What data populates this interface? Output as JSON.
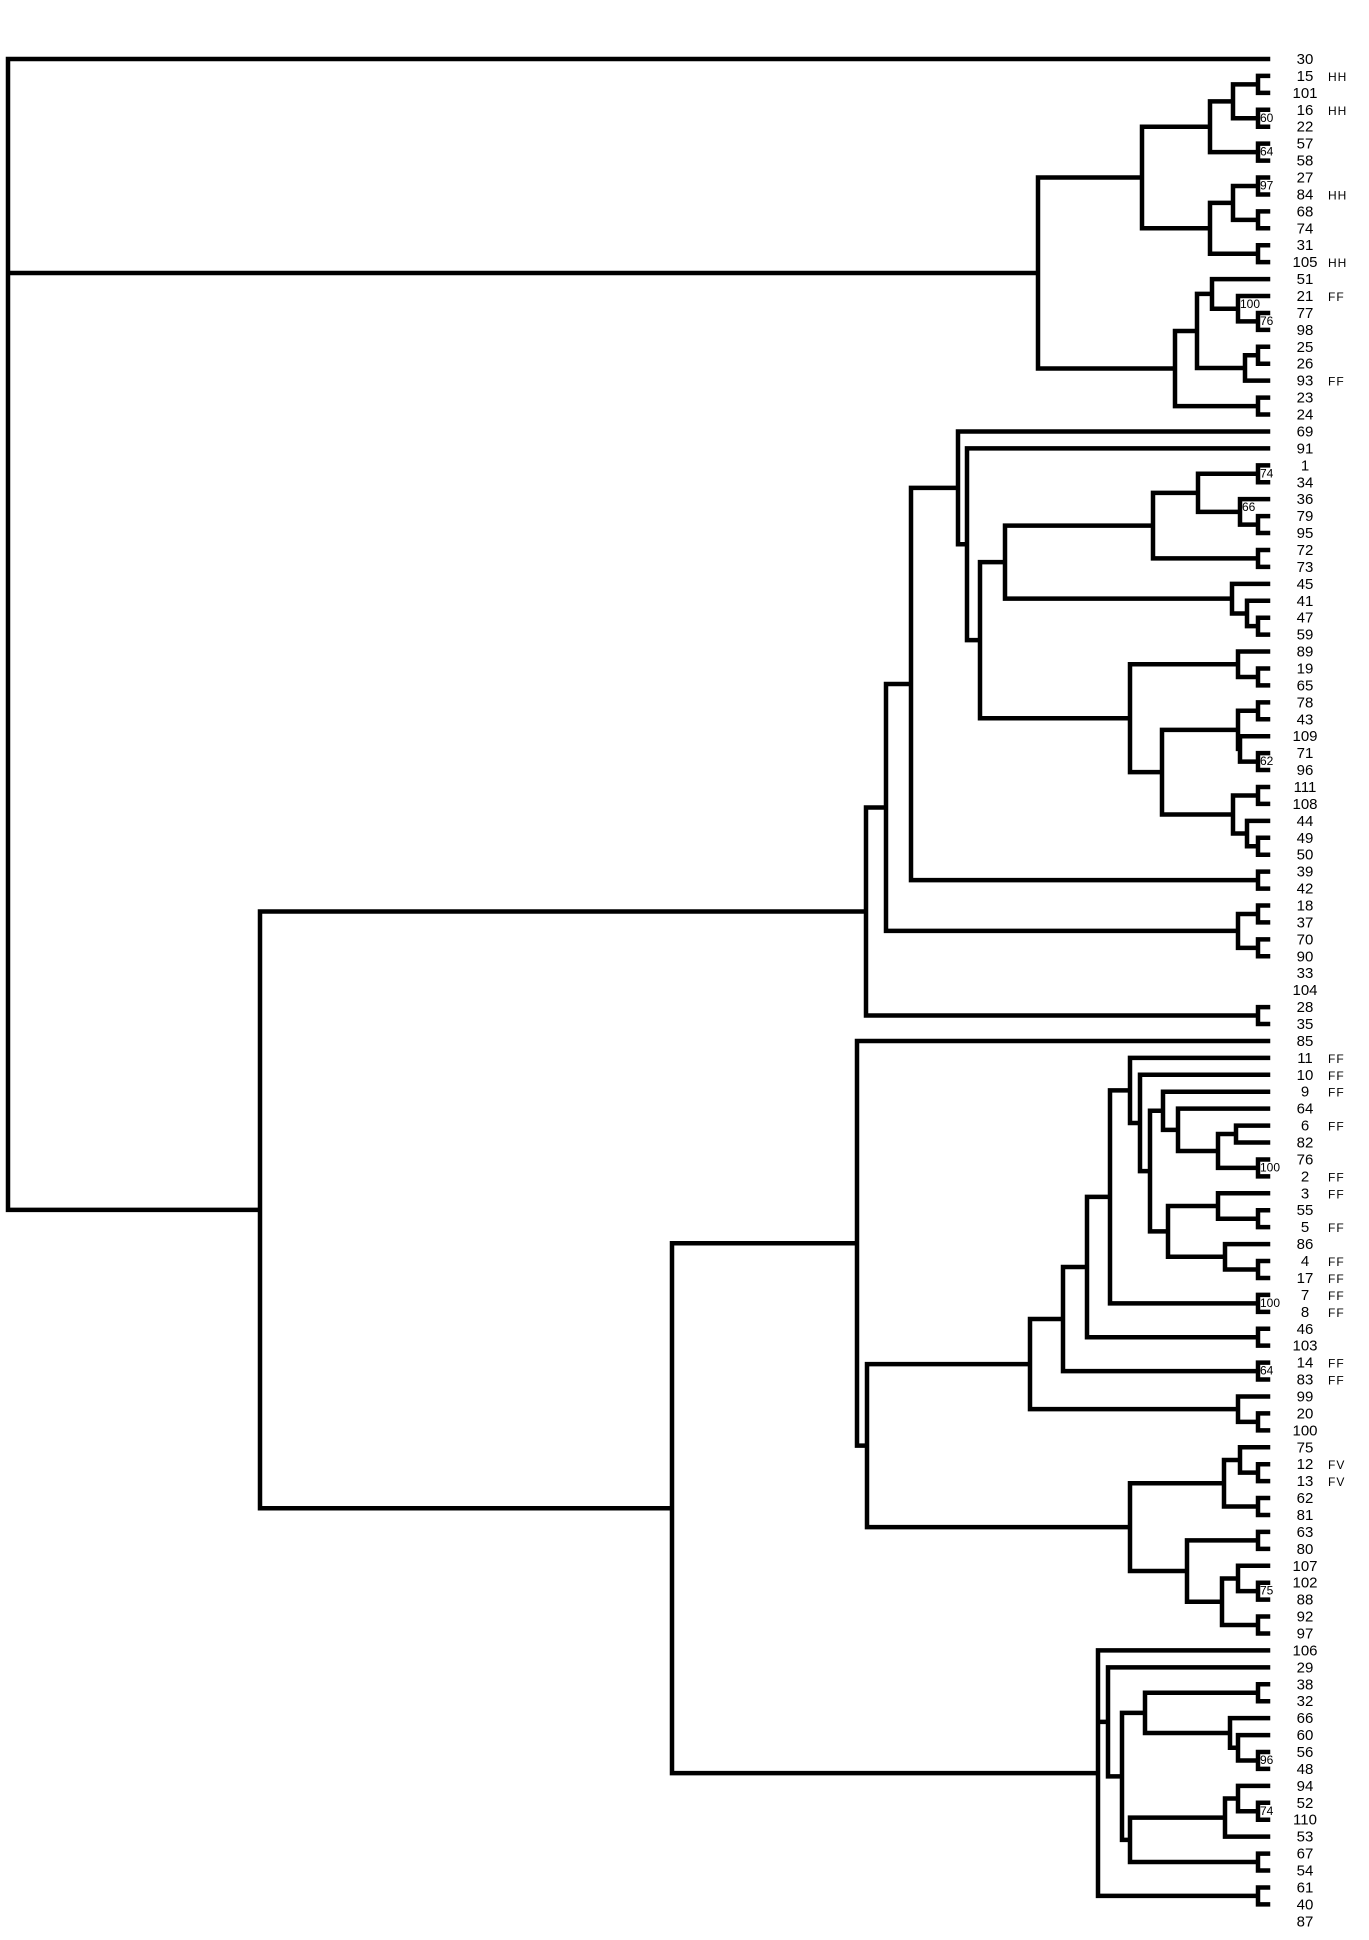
{
  "tree": {
    "leaves": [
      {
        "label": "30"
      },
      {
        "label": "15",
        "tag": "HH"
      },
      {
        "label": "101"
      },
      {
        "label": "16",
        "tag": "HH"
      },
      {
        "label": "22"
      },
      {
        "label": "57"
      },
      {
        "label": "58"
      },
      {
        "label": "27"
      },
      {
        "label": "84",
        "tag": "HH"
      },
      {
        "label": "68"
      },
      {
        "label": "74"
      },
      {
        "label": "31"
      },
      {
        "label": "105",
        "tag": "HH"
      },
      {
        "label": "51"
      },
      {
        "label": "21",
        "tag": "FF"
      },
      {
        "label": "77"
      },
      {
        "label": "98"
      },
      {
        "label": "25"
      },
      {
        "label": "26"
      },
      {
        "label": "93",
        "tag": "FF"
      },
      {
        "label": "23"
      },
      {
        "label": "24"
      },
      {
        "label": "69"
      },
      {
        "label": "91"
      },
      {
        "label": "1"
      },
      {
        "label": "34"
      },
      {
        "label": "36"
      },
      {
        "label": "79"
      },
      {
        "label": "95"
      },
      {
        "label": "72"
      },
      {
        "label": "73"
      },
      {
        "label": "45"
      },
      {
        "label": "41"
      },
      {
        "label": "47"
      },
      {
        "label": "59"
      },
      {
        "label": "89"
      },
      {
        "label": "19"
      },
      {
        "label": "65"
      },
      {
        "label": "78"
      },
      {
        "label": "43"
      },
      {
        "label": "109"
      },
      {
        "label": "71"
      },
      {
        "label": "96"
      },
      {
        "label": "111"
      },
      {
        "label": "108"
      },
      {
        "label": "44"
      },
      {
        "label": "49"
      },
      {
        "label": "50"
      },
      {
        "label": "39"
      },
      {
        "label": "42"
      },
      {
        "label": "18"
      },
      {
        "label": "37"
      },
      {
        "label": "70"
      },
      {
        "label": "90"
      },
      {
        "label": "33"
      },
      {
        "label": "104"
      },
      {
        "label": "28"
      },
      {
        "label": "35"
      },
      {
        "label": "85"
      },
      {
        "label": "11",
        "tag": "FF"
      },
      {
        "label": "10",
        "tag": "FF"
      },
      {
        "label": "9",
        "tag": "FF"
      },
      {
        "label": "64"
      },
      {
        "label": "6",
        "tag": "FF"
      },
      {
        "label": "82"
      },
      {
        "label": "76"
      },
      {
        "label": "2",
        "tag": "FF"
      },
      {
        "label": "3",
        "tag": "FF"
      },
      {
        "label": "55"
      },
      {
        "label": "5",
        "tag": "FF"
      },
      {
        "label": "86"
      },
      {
        "label": "4",
        "tag": "FF"
      },
      {
        "label": "17",
        "tag": "FF"
      },
      {
        "label": "7",
        "tag": "FF"
      },
      {
        "label": "8",
        "tag": "FF"
      },
      {
        "label": "46"
      },
      {
        "label": "103"
      },
      {
        "label": "14",
        "tag": "FF"
      },
      {
        "label": "83",
        "tag": "FF"
      },
      {
        "label": "99"
      },
      {
        "label": "20"
      },
      {
        "label": "100"
      },
      {
        "label": "75"
      },
      {
        "label": "12",
        "tag": "FV"
      },
      {
        "label": "13",
        "tag": "FV"
      },
      {
        "label": "62"
      },
      {
        "label": "81"
      },
      {
        "label": "63"
      },
      {
        "label": "80"
      },
      {
        "label": "107"
      },
      {
        "label": "102"
      },
      {
        "label": "88"
      },
      {
        "label": "92"
      },
      {
        "label": "97"
      },
      {
        "label": "106"
      },
      {
        "label": "29"
      },
      {
        "label": "38"
      },
      {
        "label": "32"
      },
      {
        "label": "66"
      },
      {
        "label": "60"
      },
      {
        "label": "56"
      },
      {
        "label": "48"
      },
      {
        "label": "94"
      },
      {
        "label": "52"
      },
      {
        "label": "110"
      },
      {
        "label": "53"
      },
      {
        "label": "67"
      },
      {
        "label": "54"
      },
      {
        "label": "61"
      },
      {
        "label": "40"
      },
      {
        "label": "87"
      }
    ],
    "bootstrap": [
      "60",
      "64",
      "97",
      "100",
      "76",
      "74",
      "66",
      "62",
      "100",
      "100",
      "64",
      "75",
      "96",
      "74"
    ]
  }
}
